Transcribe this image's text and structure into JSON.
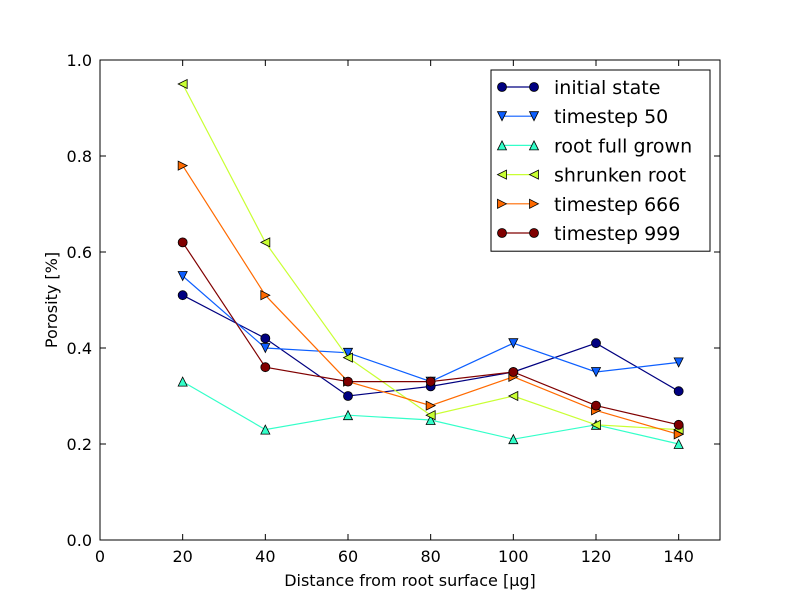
{
  "chart_data": {
    "type": "line",
    "title": "",
    "xlabel": "Distance from root surface [μg]",
    "ylabel": "Porosity [%]",
    "xlim": [
      0,
      150
    ],
    "ylim": [
      0.0,
      1.0
    ],
    "xticks": [
      0,
      20,
      40,
      60,
      80,
      100,
      120,
      140
    ],
    "yticks": [
      0.0,
      0.2,
      0.4,
      0.6,
      0.8,
      1.0
    ],
    "xtick_labels": [
      "0",
      "20",
      "40",
      "60",
      "80",
      "100",
      "120",
      "140"
    ],
    "ytick_labels": [
      "0.0",
      "0.2",
      "0.4",
      "0.6",
      "0.8",
      "1.0"
    ],
    "grid": false,
    "legend_position": "top-right",
    "x": [
      20,
      40,
      60,
      80,
      100,
      120,
      140
    ],
    "series": [
      {
        "name": "initial state",
        "color": "#000080",
        "marker": "circle",
        "values": [
          0.51,
          0.42,
          0.3,
          0.32,
          0.35,
          0.41,
          0.31
        ]
      },
      {
        "name": "timestep 50",
        "color": "#0d5fff",
        "marker": "triangle-down",
        "values": [
          0.55,
          0.4,
          0.39,
          0.33,
          0.41,
          0.35,
          0.37
        ]
      },
      {
        "name": "root full grown",
        "color": "#33ffc9",
        "marker": "triangle-up",
        "values": [
          0.33,
          0.23,
          0.26,
          0.25,
          0.21,
          0.24,
          0.2
        ]
      },
      {
        "name": "shrunken root",
        "color": "#c9ff33",
        "marker": "triangle-left",
        "values": [
          0.95,
          0.62,
          0.38,
          0.26,
          0.3,
          0.24,
          0.23
        ]
      },
      {
        "name": "timestep 666",
        "color": "#ff6a00",
        "marker": "triangle-right",
        "values": [
          0.78,
          0.51,
          0.33,
          0.28,
          0.34,
          0.27,
          0.22
        ]
      },
      {
        "name": "timestep 999",
        "color": "#800000",
        "marker": "circle",
        "values": [
          0.62,
          0.36,
          0.33,
          0.33,
          0.35,
          0.28,
          0.24
        ]
      }
    ]
  }
}
